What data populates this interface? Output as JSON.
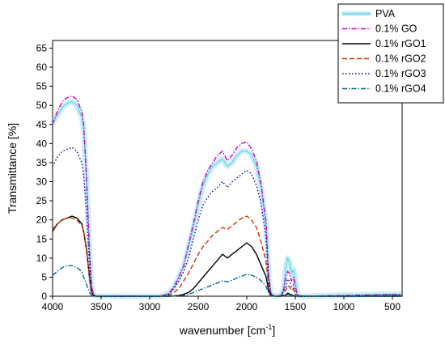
{
  "chart_data": {
    "type": "line",
    "xlabel": "wavenumber [cm",
    "xlabel_sup": "-1",
    "xlabel_end": "]",
    "ylabel": "Transmittance [%]",
    "xlim": [
      4000,
      400
    ],
    "ylim": [
      0,
      67
    ],
    "x_ticks": [
      4000,
      3500,
      3000,
      2500,
      2000,
      1500,
      1000,
      500
    ],
    "y_ticks": [
      0,
      5,
      10,
      15,
      20,
      25,
      30,
      35,
      40,
      45,
      50,
      55,
      60,
      65
    ],
    "legend_position": "top-right",
    "series": [
      {
        "name": "PVA",
        "color": "#6fd3ea",
        "style": "solid-band",
        "x": [
          4000,
          3950,
          3900,
          3850,
          3800,
          3750,
          3700,
          3680,
          3650,
          3620,
          3600,
          3580,
          3550,
          3500,
          3000,
          2900,
          2850,
          2800,
          2750,
          2700,
          2650,
          2600,
          2550,
          2500,
          2450,
          2400,
          2350,
          2300,
          2250,
          2200,
          2150,
          2100,
          2050,
          2000,
          1950,
          1900,
          1850,
          1800,
          1775,
          1750,
          1700,
          1650,
          1620,
          1600,
          1580,
          1560,
          1540,
          1520,
          1500,
          1480,
          1450,
          1400,
          1000,
          500,
          400
        ],
        "y": [
          45.3,
          47.5,
          49.5,
          50.5,
          51,
          50,
          47,
          44,
          30,
          12,
          3,
          0.5,
          0,
          0,
          0,
          0,
          0.3,
          0.8,
          2.5,
          5,
          8,
          13,
          18,
          24,
          29,
          32,
          34,
          35,
          36,
          34,
          35,
          37,
          38,
          38,
          37,
          34,
          28,
          18,
          5,
          0.5,
          0,
          0.3,
          2,
          7,
          10,
          9,
          6,
          7,
          4,
          0.5,
          0,
          0,
          0.3,
          0.6,
          0.5
        ]
      },
      {
        "name": "0.1% GO",
        "color": "#cc00cc",
        "style": "dashdot",
        "x": [
          4000,
          3950,
          3900,
          3850,
          3800,
          3750,
          3700,
          3680,
          3650,
          3620,
          3600,
          3580,
          3550,
          3500,
          3000,
          2900,
          2850,
          2800,
          2750,
          2700,
          2650,
          2600,
          2550,
          2500,
          2450,
          2400,
          2350,
          2300,
          2250,
          2200,
          2150,
          2100,
          2050,
          2000,
          1950,
          1900,
          1850,
          1800,
          1775,
          1750,
          1700,
          1650,
          1620,
          1600,
          1580,
          1560,
          1540,
          1520,
          1500,
          1480,
          1450,
          1400,
          1000,
          500,
          400
        ],
        "y": [
          45,
          48.5,
          51,
          52,
          52.5,
          51.5,
          48.5,
          45,
          31,
          12,
          3,
          0.5,
          0,
          0,
          0,
          0,
          0.3,
          0.8,
          2.5,
          5,
          8,
          13.5,
          19,
          25,
          30,
          33,
          35,
          37,
          38,
          35.5,
          37,
          39,
          40,
          40.5,
          38.5,
          35.5,
          29,
          19,
          5.5,
          0.5,
          0,
          0.2,
          1.5,
          5,
          6.5,
          6,
          4,
          5,
          2.5,
          0.3,
          0,
          0,
          0.2,
          0.4,
          0.3
        ]
      },
      {
        "name": "0.1% rGO1",
        "color": "#000000",
        "style": "solid",
        "x": [
          4000,
          3950,
          3900,
          3850,
          3800,
          3750,
          3700,
          3680,
          3650,
          3620,
          3600,
          3580,
          3550,
          3500,
          3000,
          2900,
          2800,
          2700,
          2650,
          2600,
          2550,
          2500,
          2450,
          2400,
          2350,
          2300,
          2250,
          2200,
          2150,
          2100,
          2050,
          2000,
          1950,
          1900,
          1850,
          1800,
          1775,
          1750,
          1700,
          1650,
          1600,
          1580,
          1560,
          1540,
          1520,
          1500,
          1450,
          1000,
          500,
          400
        ],
        "y": [
          17,
          19,
          20,
          20.5,
          21,
          20.5,
          19,
          17,
          12,
          5,
          1,
          0.2,
          0,
          0,
          0,
          0,
          0,
          0.2,
          0.5,
          1,
          2,
          3.5,
          5,
          6.5,
          8,
          9.5,
          11,
          10,
          11,
          12,
          13,
          14,
          13,
          11,
          8,
          5,
          1.5,
          0.2,
          0,
          0,
          0.3,
          0.8,
          0.6,
          0.4,
          0.2,
          0,
          0,
          0,
          0,
          0
        ]
      },
      {
        "name": "0.1% rGO2",
        "color": "#cc3300",
        "style": "dashed",
        "x": [
          4000,
          3950,
          3900,
          3850,
          3800,
          3750,
          3700,
          3680,
          3650,
          3620,
          3600,
          3580,
          3550,
          3500,
          3000,
          2900,
          2800,
          2750,
          2700,
          2650,
          2600,
          2550,
          2500,
          2450,
          2400,
          2350,
          2300,
          2250,
          2200,
          2150,
          2100,
          2050,
          2000,
          1950,
          1900,
          1850,
          1800,
          1775,
          1750,
          1700,
          1650,
          1600,
          1580,
          1560,
          1540,
          1520,
          1500,
          1450,
          1000,
          500,
          400
        ],
        "y": [
          17.5,
          19,
          20,
          20.5,
          20.5,
          20,
          18.5,
          17,
          12,
          5,
          1,
          0.2,
          0,
          0,
          0,
          0,
          0.3,
          1,
          2,
          4,
          6,
          8.5,
          11,
          13,
          14.5,
          16,
          17,
          18,
          17.5,
          18.5,
          19.5,
          20.5,
          21,
          20,
          18,
          14,
          9,
          3,
          0.3,
          0,
          0,
          1.5,
          2.8,
          2.5,
          1.5,
          2,
          0.5,
          0,
          0,
          0.2,
          0.2
        ]
      },
      {
        "name": "0.1% rGO3",
        "color": "#0000aa",
        "style": "dotted",
        "x": [
          4000,
          3950,
          3900,
          3850,
          3800,
          3750,
          3700,
          3680,
          3650,
          3620,
          3600,
          3580,
          3550,
          3500,
          3000,
          2900,
          2850,
          2800,
          2750,
          2700,
          2650,
          2600,
          2550,
          2500,
          2450,
          2400,
          2350,
          2300,
          2250,
          2200,
          2150,
          2100,
          2050,
          2000,
          1950,
          1900,
          1850,
          1800,
          1775,
          1750,
          1700,
          1650,
          1600,
          1580,
          1560,
          1540,
          1520,
          1500,
          1450,
          1000,
          500,
          400
        ],
        "y": [
          34,
          36.5,
          38,
          38.5,
          39,
          38,
          35,
          32,
          22,
          8,
          2,
          0.3,
          0,
          0,
          0,
          0,
          0.2,
          0.5,
          2,
          4,
          6.5,
          10,
          15,
          20,
          24,
          26,
          27.5,
          28.5,
          30,
          28.5,
          30,
          31,
          32,
          33,
          32,
          29,
          24,
          15,
          4,
          0.3,
          0,
          0,
          2.5,
          4.5,
          4,
          2.5,
          3,
          0.5,
          0,
          0,
          0.3,
          0.3
        ]
      },
      {
        "name": "0.1% rGO4",
        "color": "#006a8e",
        "style": "dashdot",
        "x": [
          4000,
          3950,
          3900,
          3850,
          3800,
          3750,
          3700,
          3680,
          3650,
          3620,
          3600,
          3580,
          3550,
          3500,
          3000,
          2900,
          2800,
          2700,
          2650,
          2600,
          2550,
          2500,
          2450,
          2400,
          2350,
          2300,
          2250,
          2200,
          2150,
          2100,
          2050,
          2000,
          1950,
          1900,
          1850,
          1800,
          1775,
          1750,
          1700,
          1650,
          1600,
          1580,
          1560,
          1540,
          1500,
          1450,
          1000,
          500,
          400
        ],
        "y": [
          5.5,
          6.5,
          7.5,
          8,
          8,
          7.5,
          6.5,
          5,
          3,
          1,
          0.3,
          0,
          0,
          0,
          0,
          0,
          0,
          0.1,
          0.2,
          0.5,
          1,
          1.5,
          2,
          2.5,
          3,
          3.5,
          4,
          3.8,
          4.2,
          4.8,
          5.3,
          5.8,
          5.5,
          5,
          4,
          2.5,
          0.8,
          0,
          0,
          0,
          0.2,
          0.5,
          0.4,
          0.2,
          0,
          0,
          0,
          0,
          0
        ]
      }
    ]
  }
}
